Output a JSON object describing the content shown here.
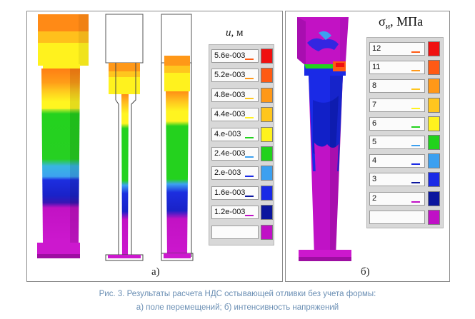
{
  "figure": {
    "panel_a": {
      "label": "а)",
      "legend": {
        "title_symbol": "u",
        "title_unit": ", м",
        "entries": [
          {
            "value": "5.6e-003",
            "color": "#f01010"
          },
          {
            "value": "5.2e-003",
            "color": "#ff5a14"
          },
          {
            "value": "4.8e-003",
            "color": "#ff9818"
          },
          {
            "value": "4.4e-003",
            "color": "#ffc61e"
          },
          {
            "value": "4.e-003",
            "color": "#fff21e"
          },
          {
            "value": "2.4e-003",
            "color": "#22d21c"
          },
          {
            "value": "2.e-003",
            "color": "#3ca0f0"
          },
          {
            "value": "1.6e-003",
            "color": "#1a2ae6"
          },
          {
            "value": "1.2e-003",
            "color": "#0b169e"
          },
          {
            "value": "",
            "color": "#c010c6"
          }
        ]
      }
    },
    "panel_b": {
      "label": "б)",
      "legend": {
        "title_symbol": "σ",
        "title_sub": "и",
        "title_unit": ", МПа",
        "entries": [
          {
            "value": "12",
            "color": "#f01010"
          },
          {
            "value": "11",
            "color": "#ff5a14"
          },
          {
            "value": "8",
            "color": "#ff9818"
          },
          {
            "value": "7",
            "color": "#ffc61e"
          },
          {
            "value": "6",
            "color": "#fff21e"
          },
          {
            "value": "5",
            "color": "#22d21c"
          },
          {
            "value": "4",
            "color": "#3ca0f0"
          },
          {
            "value": "3",
            "color": "#1a2ae6"
          },
          {
            "value": "2",
            "color": "#0b169e"
          },
          {
            "value": "",
            "color": "#c010c6"
          }
        ]
      }
    },
    "caption": {
      "line1": "Рис. 3. Результаты расчета НДС остывающей отливки без учета формы:",
      "line2": "а) поле перемещений; б) интенсивность напряжений"
    }
  }
}
